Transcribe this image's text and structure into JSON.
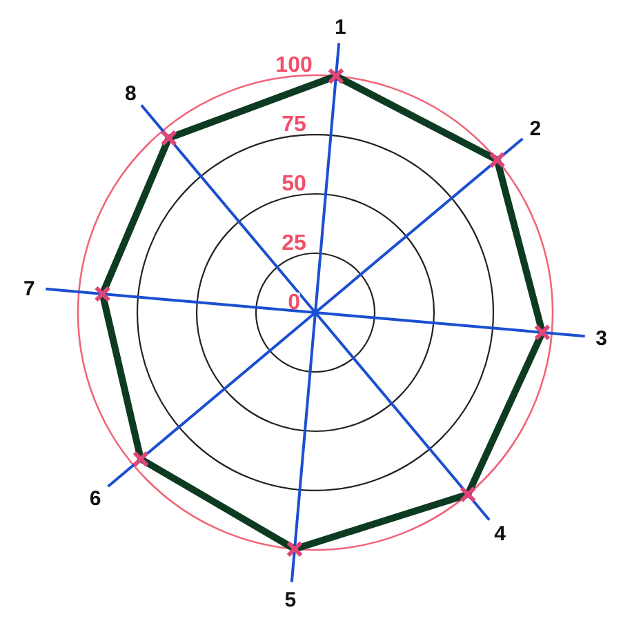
{
  "chart_data": {
    "type": "radar",
    "categories": [
      "1",
      "2",
      "3",
      "4",
      "5",
      "6",
      "7",
      "8"
    ],
    "series": [
      {
        "color": "#0d3b22",
        "colors": [
          "#e0457a",
          "#e0457a",
          "#e0457a",
          "#e0457a",
          "#e0457a",
          "#e0457a",
          "#e0457a",
          "#e0457a"
        ],
        "values": [
          100,
          100,
          96,
          100,
          100,
          96,
          90,
          96
        ]
      }
    ],
    "ylim": [
      0,
      100
    ],
    "yticks": [
      0,
      25,
      50,
      75,
      100
    ],
    "grid": true,
    "marker": "cross"
  }
}
